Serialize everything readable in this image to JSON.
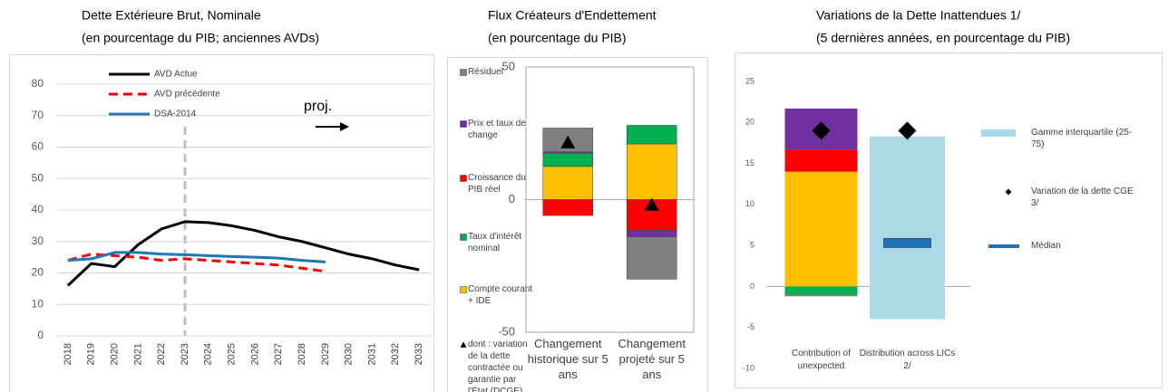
{
  "chart_data": [
    {
      "type": "line",
      "title": "Dette Extérieure Brut, Nominale",
      "subtitle": "(en pourcentage du PIB; anciennes AVDs)",
      "categories": [
        "2018",
        "2019",
        "2020",
        "2021",
        "2022",
        "2023",
        "2024",
        "2025",
        "2026",
        "2027",
        "2028",
        "2029",
        "2030",
        "2031",
        "2032",
        "2033"
      ],
      "series": [
        {
          "name": "AVD Actue",
          "color": "#000000",
          "values": [
            16,
            23,
            22,
            29,
            34,
            36.3,
            36,
            35,
            33.5,
            31.5,
            30,
            28,
            26,
            24.5,
            22.5,
            21
          ]
        },
        {
          "name": "AVD précédente",
          "color": "#ff0000",
          "dash": true,
          "values": [
            24,
            26,
            25.5,
            25,
            24,
            24.5,
            24,
            23.5,
            23,
            22.5,
            21.5,
            20.5,
            null,
            null,
            null,
            null
          ]
        },
        {
          "name": "DSA-2014",
          "color": "#1f77b4",
          "values": [
            24,
            24.5,
            26.5,
            26.5,
            26,
            25.8,
            25.5,
            25.2,
            25,
            24.7,
            24,
            23.5,
            null,
            null,
            null,
            null
          ]
        }
      ],
      "ylim": [
        0,
        80
      ],
      "yticks": [
        0,
        10,
        20,
        30,
        40,
        50,
        60,
        70,
        80
      ],
      "grid": true,
      "vline": "2023",
      "annotations": [
        "proj."
      ]
    },
    {
      "type": "bar",
      "title": "Flux Créateurs d'Endettement",
      "subtitle": "(en pourcentage du PIB)",
      "categories": [
        "Changement historique sur 5 ans",
        "Changement projeté sur 5 ans"
      ],
      "series": [
        {
          "name": "Résiduel",
          "color": "#808080",
          "values": [
            9,
            -16
          ]
        },
        {
          "name": "Prix et taux de change",
          "color": "#7030a0",
          "values": [
            0.5,
            -2.5
          ]
        },
        {
          "name": "Croissance du PIB réel",
          "color": "#ff0000",
          "values": [
            -6,
            -11.5
          ]
        },
        {
          "name": "Taux d'intérêt nominal",
          "color": "#00b050",
          "values": [
            5,
            7
          ]
        },
        {
          "name": "Compte courant + IDE",
          "color": "#ffc000",
          "values": [
            12.5,
            21
          ]
        },
        {
          "name": "dont : variation de la dette contractée ou garantie par l'État (DCGE)",
          "color": "#000000",
          "marker": "triangle",
          "values": [
            21.5,
            -2
          ]
        }
      ],
      "ylim": [
        -50,
        50
      ],
      "yticks": [
        -50,
        0,
        50
      ]
    },
    {
      "type": "bar",
      "title": "Variations de la Dette Inattendues 1/",
      "subtitle": "(5 dernières années, en pourcentage du PIB)",
      "categories": [
        "Contribution of unexpected",
        "Distribution across LICs 2/"
      ],
      "series": [
        {
          "name": "Gamme interquartile (25-75)",
          "color": "#add8e6",
          "low": [
            null,
            -4
          ],
          "high": [
            null,
            18.3
          ]
        },
        {
          "color": "#808080",
          "values": [
            -0.2,
            null
          ]
        },
        {
          "color": "#7030a0",
          "values": [
            5,
            null
          ]
        },
        {
          "color": "#ff0000",
          "values": [
            2.7,
            null
          ]
        },
        {
          "color": "#00b050",
          "values": [
            -1,
            null
          ]
        },
        {
          "color": "#ffc000",
          "values": [
            14,
            null
          ]
        },
        {
          "name": "Variation de la dette CGE 3/",
          "color": "#000000",
          "marker": "diamond",
          "values": [
            19,
            19
          ]
        },
        {
          "name": "Médian",
          "color": "#1f6fb4",
          "marker": "median",
          "values": [
            null,
            5.3
          ]
        }
      ],
      "ylim": [
        -10,
        25
      ],
      "yticks": [
        -10,
        -5,
        0,
        5,
        10,
        15,
        20,
        25
      ]
    }
  ]
}
